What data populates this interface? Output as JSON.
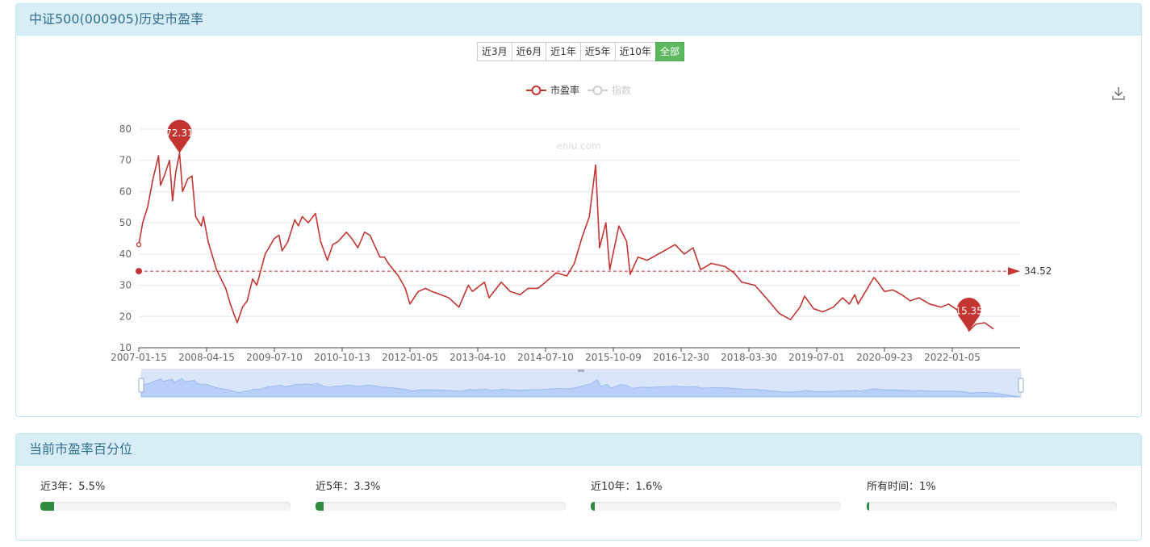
{
  "panel1": {
    "title": "中证500(000905)历史市盈率"
  },
  "ranges": [
    {
      "label": "近3月",
      "active": false
    },
    {
      "label": "近6月",
      "active": false
    },
    {
      "label": "近1年",
      "active": false
    },
    {
      "label": "近5年",
      "active": false
    },
    {
      "label": "近10年",
      "active": false
    },
    {
      "label": "全部",
      "active": true
    }
  ],
  "legend": {
    "pe_label": "市盈率",
    "index_label": "指数"
  },
  "watermark": "eniu.com",
  "download_icon": "download-icon",
  "colors": {
    "line": "#c23531",
    "grid": "#e6e6f0",
    "accent_green": "#5cb85c",
    "bar_green": "#2e8b3f"
  },
  "chart_data": {
    "type": "line",
    "series": [
      {
        "name": "市盈率",
        "points": [
          [
            "2007-01-15",
            43
          ],
          [
            "2007-02-10",
            50
          ],
          [
            "2007-03-15",
            55
          ],
          [
            "2007-04-20",
            64
          ],
          [
            "2007-05-28",
            71.5
          ],
          [
            "2007-06-10",
            62
          ],
          [
            "2007-07-05",
            65
          ],
          [
            "2007-08-10",
            70
          ],
          [
            "2007-08-30",
            57
          ],
          [
            "2007-09-20",
            66
          ],
          [
            "2007-10-16",
            72.31
          ],
          [
            "2007-11-05",
            60
          ],
          [
            "2007-12-10",
            64
          ],
          [
            "2008-01-08",
            65
          ],
          [
            "2008-02-01",
            52
          ],
          [
            "2008-03-10",
            49
          ],
          [
            "2008-03-25",
            52
          ],
          [
            "2008-04-25",
            44
          ],
          [
            "2008-05-20",
            40
          ],
          [
            "2008-06-20",
            35
          ],
          [
            "2008-07-20",
            32
          ],
          [
            "2008-08-20",
            29
          ],
          [
            "2008-09-20",
            24
          ],
          [
            "2008-10-20",
            20
          ],
          [
            "2008-11-05",
            18
          ],
          [
            "2008-12-10",
            23
          ],
          [
            "2009-01-10",
            25
          ],
          [
            "2009-02-15",
            32
          ],
          [
            "2009-03-15",
            30
          ],
          [
            "2009-05-10",
            40
          ],
          [
            "2009-07-10",
            45
          ],
          [
            "2009-08-10",
            46
          ],
          [
            "2009-08-31",
            41
          ],
          [
            "2009-10-10",
            44
          ],
          [
            "2009-11-25",
            51
          ],
          [
            "2009-12-20",
            49
          ],
          [
            "2010-01-15",
            52
          ],
          [
            "2010-02-25",
            50
          ],
          [
            "2010-04-15",
            53
          ],
          [
            "2010-05-20",
            44
          ],
          [
            "2010-07-05",
            38
          ],
          [
            "2010-08-10",
            43
          ],
          [
            "2010-09-15",
            44
          ],
          [
            "2010-11-10",
            47
          ],
          [
            "2010-12-15",
            45
          ],
          [
            "2011-01-25",
            42
          ],
          [
            "2011-03-10",
            47
          ],
          [
            "2011-04-15",
            46
          ],
          [
            "2011-06-20",
            39
          ],
          [
            "2011-07-20",
            39
          ],
          [
            "2011-08-15",
            37
          ],
          [
            "2011-10-20",
            33
          ],
          [
            "2011-12-05",
            29
          ],
          [
            "2012-01-05",
            24
          ],
          [
            "2012-03-01",
            28
          ],
          [
            "2012-04-20",
            29
          ],
          [
            "2012-06-01",
            28
          ],
          [
            "2012-08-01",
            27
          ],
          [
            "2012-09-25",
            26
          ],
          [
            "2012-12-03",
            23
          ],
          [
            "2013-02-05",
            30
          ],
          [
            "2013-03-05",
            28
          ],
          [
            "2013-05-25",
            31
          ],
          [
            "2013-06-25",
            26
          ],
          [
            "2013-09-15",
            31
          ],
          [
            "2013-11-15",
            28
          ],
          [
            "2014-01-20",
            27
          ],
          [
            "2014-03-15",
            29
          ],
          [
            "2014-05-20",
            29
          ],
          [
            "2014-07-10",
            31
          ],
          [
            "2014-09-20",
            34
          ],
          [
            "2014-12-01",
            33
          ],
          [
            "2015-01-20",
            37
          ],
          [
            "2015-03-10",
            45
          ],
          [
            "2015-05-01",
            52
          ],
          [
            "2015-06-12",
            68.5
          ],
          [
            "2015-07-08",
            42
          ],
          [
            "2015-08-20",
            50
          ],
          [
            "2015-09-15",
            35
          ],
          [
            "2015-11-15",
            49
          ],
          [
            "2016-01-05",
            44
          ],
          [
            "2016-01-28",
            33.5
          ],
          [
            "2016-03-20",
            39
          ],
          [
            "2016-05-20",
            38
          ],
          [
            "2016-08-20",
            40.5
          ],
          [
            "2016-11-20",
            43
          ],
          [
            "2017-01-20",
            40
          ],
          [
            "2017-03-20",
            42
          ],
          [
            "2017-05-10",
            35
          ],
          [
            "2017-07-20",
            37
          ],
          [
            "2017-10-20",
            36
          ],
          [
            "2017-12-20",
            34
          ],
          [
            "2018-02-10",
            31
          ],
          [
            "2018-05-10",
            30
          ],
          [
            "2018-08-10",
            25
          ],
          [
            "2018-10-20",
            21
          ],
          [
            "2019-01-05",
            19
          ],
          [
            "2019-03-10",
            23
          ],
          [
            "2019-04-10",
            26.5
          ],
          [
            "2019-06-10",
            22.5
          ],
          [
            "2019-08-10",
            21.5
          ],
          [
            "2019-10-20",
            23
          ],
          [
            "2019-12-20",
            26
          ],
          [
            "2020-02-03",
            24
          ],
          [
            "2020-03-10",
            27
          ],
          [
            "2020-04-01",
            24
          ],
          [
            "2020-07-15",
            32.5
          ],
          [
            "2020-08-10",
            31
          ],
          [
            "2020-09-23",
            28
          ],
          [
            "2020-11-20",
            28.5
          ],
          [
            "2021-01-20",
            27
          ],
          [
            "2021-03-20",
            25
          ],
          [
            "2021-05-20",
            26
          ],
          [
            "2021-08-01",
            24
          ],
          [
            "2021-10-20",
            23
          ],
          [
            "2021-12-10",
            24
          ],
          [
            "2022-02-10",
            22
          ],
          [
            "2022-03-20",
            21
          ],
          [
            "2022-04-27",
            15.35
          ],
          [
            "2022-06-10",
            17.5
          ],
          [
            "2022-08-10",
            18
          ],
          [
            "2022-10-10",
            16
          ]
        ]
      }
    ],
    "index_series_name": "指数",
    "x_tick_labels": [
      "2007-01-15",
      "2008-04-15",
      "2009-07-10",
      "2010-10-13",
      "2012-01-05",
      "2013-04-10",
      "2014-07-10",
      "2015-10-09",
      "2016-12-30",
      "2018-03-30",
      "2019-07-01",
      "2020-09-23",
      "2022-01-05"
    ],
    "ylim": [
      10,
      80
    ],
    "y_ticks": [
      10,
      20,
      30,
      40,
      50,
      60,
      70,
      80
    ],
    "markers": {
      "max": {
        "date": "2007-10-16",
        "value": 72.31,
        "label": "72.31"
      },
      "min": {
        "date": "2022-04-27",
        "value": 15.35,
        "label": "15.35"
      }
    },
    "average_line": {
      "value": 34.52,
      "label": "34.52"
    },
    "grid": "horizontal",
    "legend_position": "top-center",
    "data_zoom": {
      "start": 0,
      "end": 100
    }
  },
  "panel2": {
    "title": "当前市盈率百分位"
  },
  "percentiles": [
    {
      "label": "近3年：5.5%",
      "value": 5.5
    },
    {
      "label": "近5年：3.3%",
      "value": 3.3
    },
    {
      "label": "近10年：1.6%",
      "value": 1.6
    },
    {
      "label": "所有时间：1%",
      "value": 1
    }
  ]
}
